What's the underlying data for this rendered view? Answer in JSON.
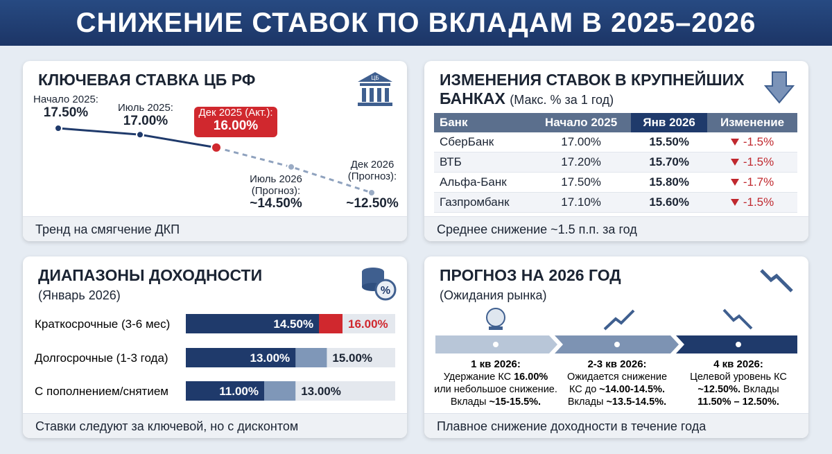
{
  "title": "СНИЖЕНИЕ СТАВОК ПО ВКЛАДАМ В 2025–2026",
  "key_rate": {
    "title": "КЛЮЧЕВАЯ СТАВКА ЦБ РФ",
    "icon_label": "ЦБ",
    "points": [
      {
        "label_lines": [
          "Начало 2025:"
        ],
        "value": 17.5,
        "value_label": "17.50%"
      },
      {
        "label_lines": [
          "Июль 2025:"
        ],
        "value": 17.0,
        "value_label": "17.00%"
      },
      {
        "label_lines": [
          "Дек 2025 (Акт.):"
        ],
        "value": 16.0,
        "value_label": "16.00%"
      },
      {
        "label_lines": [
          "Июль 2026",
          "(Прогноз):"
        ],
        "value": 14.5,
        "value_label": "~14.50%"
      },
      {
        "label_lines": [
          "Дек 2026",
          "(Прогноз):"
        ],
        "value": 12.5,
        "value_label": "~12.50%"
      }
    ],
    "footer": "Тренд на смягчение ДКП"
  },
  "banks": {
    "title_lines": [
      "ИЗМЕНЕНИЯ СТАВОК В КРУПНЕЙШИХ",
      "БАНКАХ"
    ],
    "subtitle": "(Макс. % за 1 год)",
    "table": {
      "header": [
        "Банк",
        "Начало 2025",
        "Янв 2026",
        "Изменение"
      ],
      "rows": [
        [
          "СберБанк",
          "17.00%",
          "15.50%",
          "-1.5%"
        ],
        [
          "ВТБ",
          "17.20%",
          "15.70%",
          "-1.5%"
        ],
        [
          "Альфа-Банк",
          "17.50%",
          "15.80%",
          "-1.7%"
        ],
        [
          "Газпромбанк",
          "17.10%",
          "15.60%",
          "-1.5%"
        ]
      ]
    },
    "footer": "Среднее снижение ~1.5 п.п. за год"
  },
  "yield_ranges": {
    "title": "ДИАПАЗОНЫ ДОХОДНОСТИ",
    "subtitle": "(Январь 2026)",
    "icon_label": "%",
    "rows": [
      {
        "label": "Краткосрочные (3-6 мес)",
        "low": 14.5,
        "low_label": "14.50%",
        "high": 16.0,
        "high_label": "16.00%",
        "high_color": "#d0282e"
      },
      {
        "label": "Долгосрочные (1-3 года)",
        "low": 13.0,
        "low_label": "13.00%",
        "high": 15.0,
        "high_label": "15.00%",
        "high_color": "#7f97b8"
      },
      {
        "label": "С пополнением/снятием",
        "low": 11.0,
        "low_label": "11.00%",
        "high": 13.0,
        "high_label": "13.00%",
        "high_color": "#7f97b8"
      }
    ],
    "footer": "Ставки следуют за ключевой, но с дисконтом"
  },
  "forecast": {
    "title": "ПРОГНОЗ НА 2026 ГОД",
    "subtitle": "(Ожидания рынка)",
    "stages": [
      {
        "heading": "1 кв 2026:",
        "lines": [
          [
            {
              "text": "Удержание КС ",
              "bold": false
            },
            {
              "text": "16.00%",
              "bold": true
            }
          ],
          [
            {
              "text": "или небольшое снижение.",
              "bold": false
            }
          ],
          [
            {
              "text": "Вклады ",
              "bold": false
            },
            {
              "text": "~15-15.5%.",
              "bold": true
            }
          ]
        ]
      },
      {
        "heading": "2-3 кв 2026:",
        "lines": [
          [
            {
              "text": "Ожидается снижение",
              "bold": false
            }
          ],
          [
            {
              "text": "КС до ",
              "bold": false
            },
            {
              "text": "~14.00-14.5%.",
              "bold": true
            }
          ],
          [
            {
              "text": "Вклады ",
              "bold": false
            },
            {
              "text": "~13.5-14.5%.",
              "bold": true
            }
          ]
        ]
      },
      {
        "heading": "4 кв 2026:",
        "lines": [
          [
            {
              "text": "Целевой уровень КС",
              "bold": false
            }
          ],
          [
            {
              "text": "~12.50%.",
              "bold": true
            },
            {
              "text": " Вклады",
              "bold": false
            }
          ],
          [
            {
              "text": "11.50% – 12.50%.",
              "bold": true
            }
          ]
        ]
      }
    ],
    "footer": "Плавное снижение доходности в течение года"
  }
}
